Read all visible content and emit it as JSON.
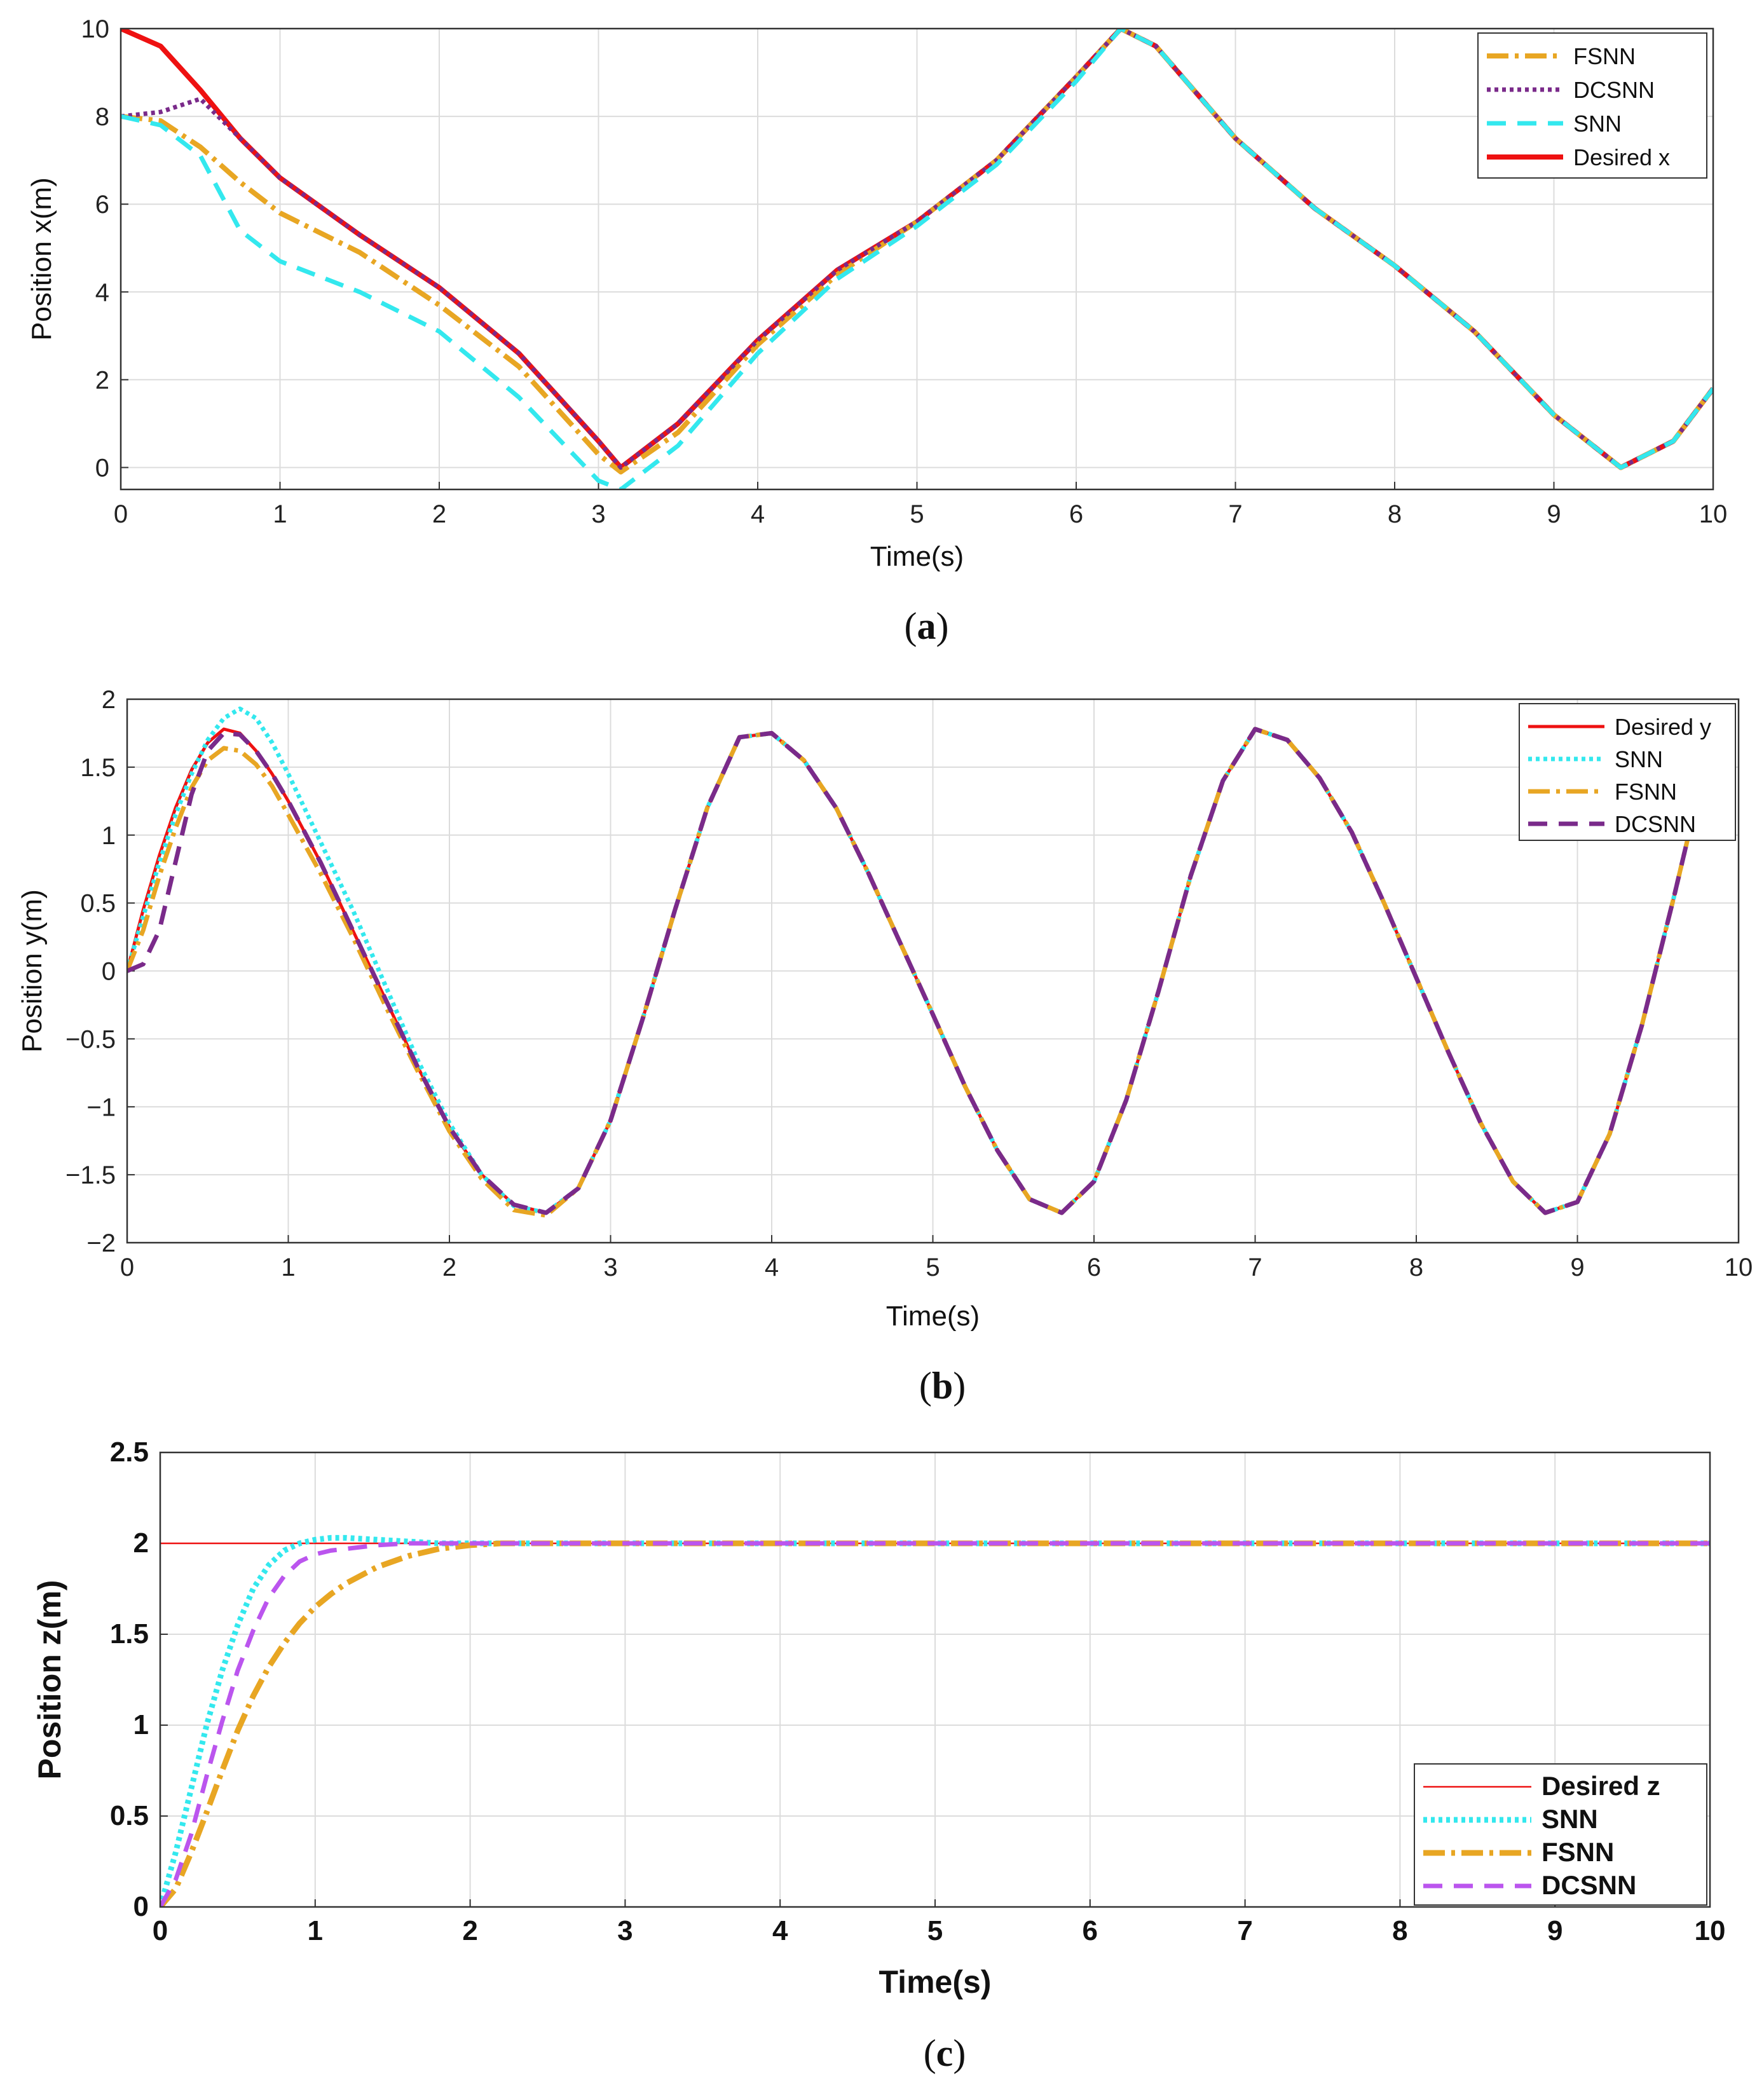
{
  "chart_data": [
    {
      "type": "line",
      "caption": "a",
      "xlabel": "Time(s)",
      "ylabel": "Position x(m)",
      "xlim": [
        0,
        10
      ],
      "ylim": [
        -0.5,
        10
      ],
      "xticks": [
        "0",
        "1",
        "2",
        "3",
        "4",
        "5",
        "6",
        "7",
        "8",
        "9",
        "10"
      ],
      "yticks": [
        "0",
        "2",
        "4",
        "6",
        "8",
        "10"
      ],
      "ytick_values": [
        0,
        2,
        4,
        6,
        8,
        10
      ],
      "legend": [
        "FSNN",
        "DCSNN",
        "SNN",
        "Desired x"
      ],
      "x": [
        0,
        0.25,
        0.5,
        0.75,
        1,
        1.5,
        2,
        2.5,
        3,
        3.14,
        3.5,
        4,
        4.5,
        5,
        5.5,
        6,
        6.28,
        6.5,
        7,
        7.5,
        8,
        8.5,
        9,
        9.42,
        9.75,
        10
      ],
      "series": [
        {
          "name": "Desired x",
          "color": "#ee1111",
          "values": [
            10,
            9.6,
            8.6,
            7.5,
            6.6,
            5.3,
            4.1,
            2.6,
            0.6,
            0.0,
            1.0,
            2.9,
            4.5,
            5.6,
            7.0,
            8.9,
            10.0,
            9.6,
            7.5,
            5.9,
            4.6,
            3.1,
            1.2,
            0.0,
            0.6,
            1.8
          ]
        },
        {
          "name": "FSNN",
          "color": "#e8a623",
          "values": [
            8,
            7.9,
            7.3,
            6.5,
            5.8,
            4.9,
            3.7,
            2.3,
            0.3,
            -0.1,
            0.8,
            2.8,
            4.4,
            5.6,
            7.0,
            8.9,
            10.0,
            9.6,
            7.5,
            5.9,
            4.6,
            3.1,
            1.2,
            0.0,
            0.6,
            1.8
          ]
        },
        {
          "name": "DCSNN",
          "color": "#7a2a8a",
          "values": [
            8,
            8.1,
            8.4,
            7.5,
            6.6,
            5.3,
            4.1,
            2.6,
            0.6,
            0.0,
            1.0,
            2.9,
            4.5,
            5.6,
            7.0,
            8.9,
            10.0,
            9.6,
            7.5,
            5.9,
            4.6,
            3.1,
            1.2,
            0.0,
            0.6,
            1.8
          ]
        },
        {
          "name": "SNN",
          "color": "#33e8ee",
          "values": [
            8,
            7.8,
            7.1,
            5.4,
            4.7,
            4.0,
            3.1,
            1.6,
            -0.3,
            -0.5,
            0.5,
            2.6,
            4.3,
            5.5,
            6.9,
            8.8,
            10.0,
            9.6,
            7.5,
            5.9,
            4.6,
            3.1,
            1.2,
            0.0,
            0.6,
            1.8
          ]
        }
      ]
    },
    {
      "type": "line",
      "caption": "b",
      "xlabel": "Time(s)",
      "ylabel": "Position y(m)",
      "xlim": [
        0,
        10
      ],
      "ylim": [
        -2,
        2
      ],
      "xticks": [
        "0",
        "1",
        "2",
        "3",
        "4",
        "5",
        "6",
        "7",
        "8",
        "9",
        "10"
      ],
      "yticks": [
        "−2",
        "−1.5",
        "−1",
        "−0.5",
        "0",
        "0.5",
        "1",
        "1.5",
        "2"
      ],
      "ytick_values": [
        -2,
        -1.5,
        -1,
        -0.5,
        0,
        0.5,
        1,
        1.5,
        2
      ],
      "legend": [
        "Desired y",
        "SNN",
        "FSNN",
        "DCSNN"
      ],
      "x": [
        0,
        0.1,
        0.2,
        0.3,
        0.4,
        0.5,
        0.6,
        0.7,
        0.8,
        0.9,
        1.0,
        1.2,
        1.4,
        1.6,
        1.8,
        2.0,
        2.2,
        2.4,
        2.6,
        2.8,
        3.0,
        3.2,
        3.4,
        3.6,
        3.8,
        4.0,
        4.2,
        4.4,
        4.6,
        4.8,
        5.0,
        5.2,
        5.4,
        5.6,
        5.8,
        6.0,
        6.2,
        6.4,
        6.6,
        6.8,
        7.0,
        7.2,
        7.4,
        7.6,
        7.8,
        8.0,
        8.2,
        8.4,
        8.6,
        8.8,
        9.0,
        9.2,
        9.4,
        9.6,
        9.7
      ],
      "series": [
        {
          "name": "Desired y",
          "color": "#ee1111",
          "values": [
            0.0,
            0.45,
            0.85,
            1.2,
            1.48,
            1.68,
            1.78,
            1.75,
            1.62,
            1.45,
            1.25,
            0.8,
            0.3,
            -0.2,
            -0.7,
            -1.15,
            -1.5,
            -1.72,
            -1.78,
            -1.6,
            -1.1,
            -0.35,
            0.45,
            1.2,
            1.72,
            1.75,
            1.55,
            1.2,
            0.72,
            0.2,
            -0.32,
            -0.85,
            -1.32,
            -1.68,
            -1.78,
            -1.55,
            -0.95,
            -0.15,
            0.7,
            1.4,
            1.78,
            1.7,
            1.42,
            1.02,
            0.5,
            -0.05,
            -0.6,
            -1.12,
            -1.55,
            -1.78,
            -1.7,
            -1.2,
            -0.4,
            0.55,
            1.05
          ]
        },
        {
          "name": "SNN",
          "color": "#33e8ee",
          "values": [
            0.0,
            0.4,
            0.8,
            1.15,
            1.45,
            1.7,
            1.86,
            1.93,
            1.86,
            1.68,
            1.45,
            0.95,
            0.45,
            -0.1,
            -0.65,
            -1.12,
            -1.5,
            -1.73,
            -1.78,
            -1.6,
            -1.1,
            -0.35,
            0.45,
            1.2,
            1.72,
            1.75,
            1.55,
            1.2,
            0.72,
            0.2,
            -0.32,
            -0.85,
            -1.32,
            -1.68,
            -1.78,
            -1.55,
            -0.95,
            -0.15,
            0.7,
            1.4,
            1.78,
            1.7,
            1.42,
            1.02,
            0.5,
            -0.05,
            -0.6,
            -1.12,
            -1.55,
            -1.78,
            -1.7,
            -1.2,
            -0.4,
            0.55,
            1.05
          ]
        },
        {
          "name": "FSNN",
          "color": "#e8a623",
          "values": [
            0.0,
            0.3,
            0.7,
            1.05,
            1.35,
            1.55,
            1.64,
            1.62,
            1.52,
            1.36,
            1.15,
            0.72,
            0.25,
            -0.25,
            -0.73,
            -1.18,
            -1.53,
            -1.76,
            -1.8,
            -1.6,
            -1.1,
            -0.35,
            0.45,
            1.2,
            1.72,
            1.75,
            1.55,
            1.2,
            0.72,
            0.2,
            -0.32,
            -0.85,
            -1.32,
            -1.68,
            -1.78,
            -1.55,
            -0.95,
            -0.15,
            0.7,
            1.4,
            1.78,
            1.7,
            1.42,
            1.02,
            0.5,
            -0.05,
            -0.6,
            -1.12,
            -1.55,
            -1.78,
            -1.7,
            -1.2,
            -0.4,
            0.55,
            1.05
          ]
        },
        {
          "name": "DCSNN",
          "color": "#7a2a8a",
          "values": [
            0.0,
            0.05,
            0.3,
            0.8,
            1.3,
            1.62,
            1.75,
            1.74,
            1.62,
            1.45,
            1.25,
            0.8,
            0.3,
            -0.2,
            -0.7,
            -1.15,
            -1.5,
            -1.72,
            -1.78,
            -1.6,
            -1.1,
            -0.35,
            0.45,
            1.2,
            1.72,
            1.75,
            1.55,
            1.2,
            0.72,
            0.2,
            -0.32,
            -0.85,
            -1.32,
            -1.68,
            -1.78,
            -1.55,
            -0.95,
            -0.15,
            0.7,
            1.4,
            1.78,
            1.7,
            1.42,
            1.02,
            0.5,
            -0.05,
            -0.6,
            -1.12,
            -1.55,
            -1.78,
            -1.7,
            -1.2,
            -0.4,
            0.55,
            1.05
          ]
        }
      ]
    },
    {
      "type": "line",
      "caption": "c",
      "xlabel": "Time(s)",
      "ylabel": "Position z(m)",
      "xlim": [
        0,
        10
      ],
      "ylim": [
        0,
        2.5
      ],
      "xticks": [
        "0",
        "1",
        "2",
        "3",
        "4",
        "5",
        "6",
        "7",
        "8",
        "9",
        "10"
      ],
      "yticks": [
        "0",
        "0.5",
        "1",
        "1.5",
        "2",
        "2.5"
      ],
      "ytick_values": [
        0,
        0.5,
        1,
        1.5,
        2,
        2.5
      ],
      "legend": [
        "Desired z",
        "SNN",
        "FSNN",
        "DCSNN"
      ],
      "x": [
        0,
        0.1,
        0.2,
        0.3,
        0.4,
        0.5,
        0.6,
        0.7,
        0.8,
        0.9,
        1.0,
        1.1,
        1.2,
        1.4,
        1.6,
        1.8,
        2.0,
        2.2,
        2.5,
        3,
        4,
        5,
        6,
        7,
        8,
        9,
        10
      ],
      "series": [
        {
          "name": "Desired z",
          "color": "#ee1111",
          "values": [
            2,
            2,
            2,
            2,
            2,
            2,
            2,
            2,
            2,
            2,
            2,
            2,
            2,
            2,
            2,
            2,
            2,
            2,
            2,
            2,
            2,
            2,
            2,
            2,
            2,
            2,
            2
          ]
        },
        {
          "name": "SNN",
          "color": "#33e8ee",
          "values": [
            0.0,
            0.3,
            0.65,
            1.0,
            1.3,
            1.55,
            1.75,
            1.88,
            1.96,
            2.0,
            2.02,
            2.03,
            2.03,
            2.02,
            2.01,
            2.0,
            2.0,
            2.0,
            2.0,
            2.0,
            2.0,
            2.0,
            2.0,
            2.0,
            2.0,
            2.0,
            2.0
          ]
        },
        {
          "name": "FSNN",
          "color": "#e8a623",
          "values": [
            0.0,
            0.1,
            0.3,
            0.52,
            0.75,
            0.97,
            1.16,
            1.32,
            1.45,
            1.56,
            1.65,
            1.72,
            1.78,
            1.87,
            1.93,
            1.97,
            1.99,
            2.0,
            2.0,
            2.0,
            2.0,
            2.0,
            2.0,
            2.0,
            2.0,
            2.0,
            2.0
          ]
        },
        {
          "name": "DCSNN",
          "color": "#bb55ee",
          "values": [
            0.0,
            0.15,
            0.4,
            0.72,
            1.02,
            1.3,
            1.52,
            1.7,
            1.82,
            1.9,
            1.94,
            1.96,
            1.97,
            1.99,
            2.0,
            2.0,
            2.0,
            2.0,
            2.0,
            2.0,
            2.0,
            2.0,
            2.0,
            2.0,
            2.0,
            2.0,
            2.0
          ]
        }
      ]
    }
  ]
}
